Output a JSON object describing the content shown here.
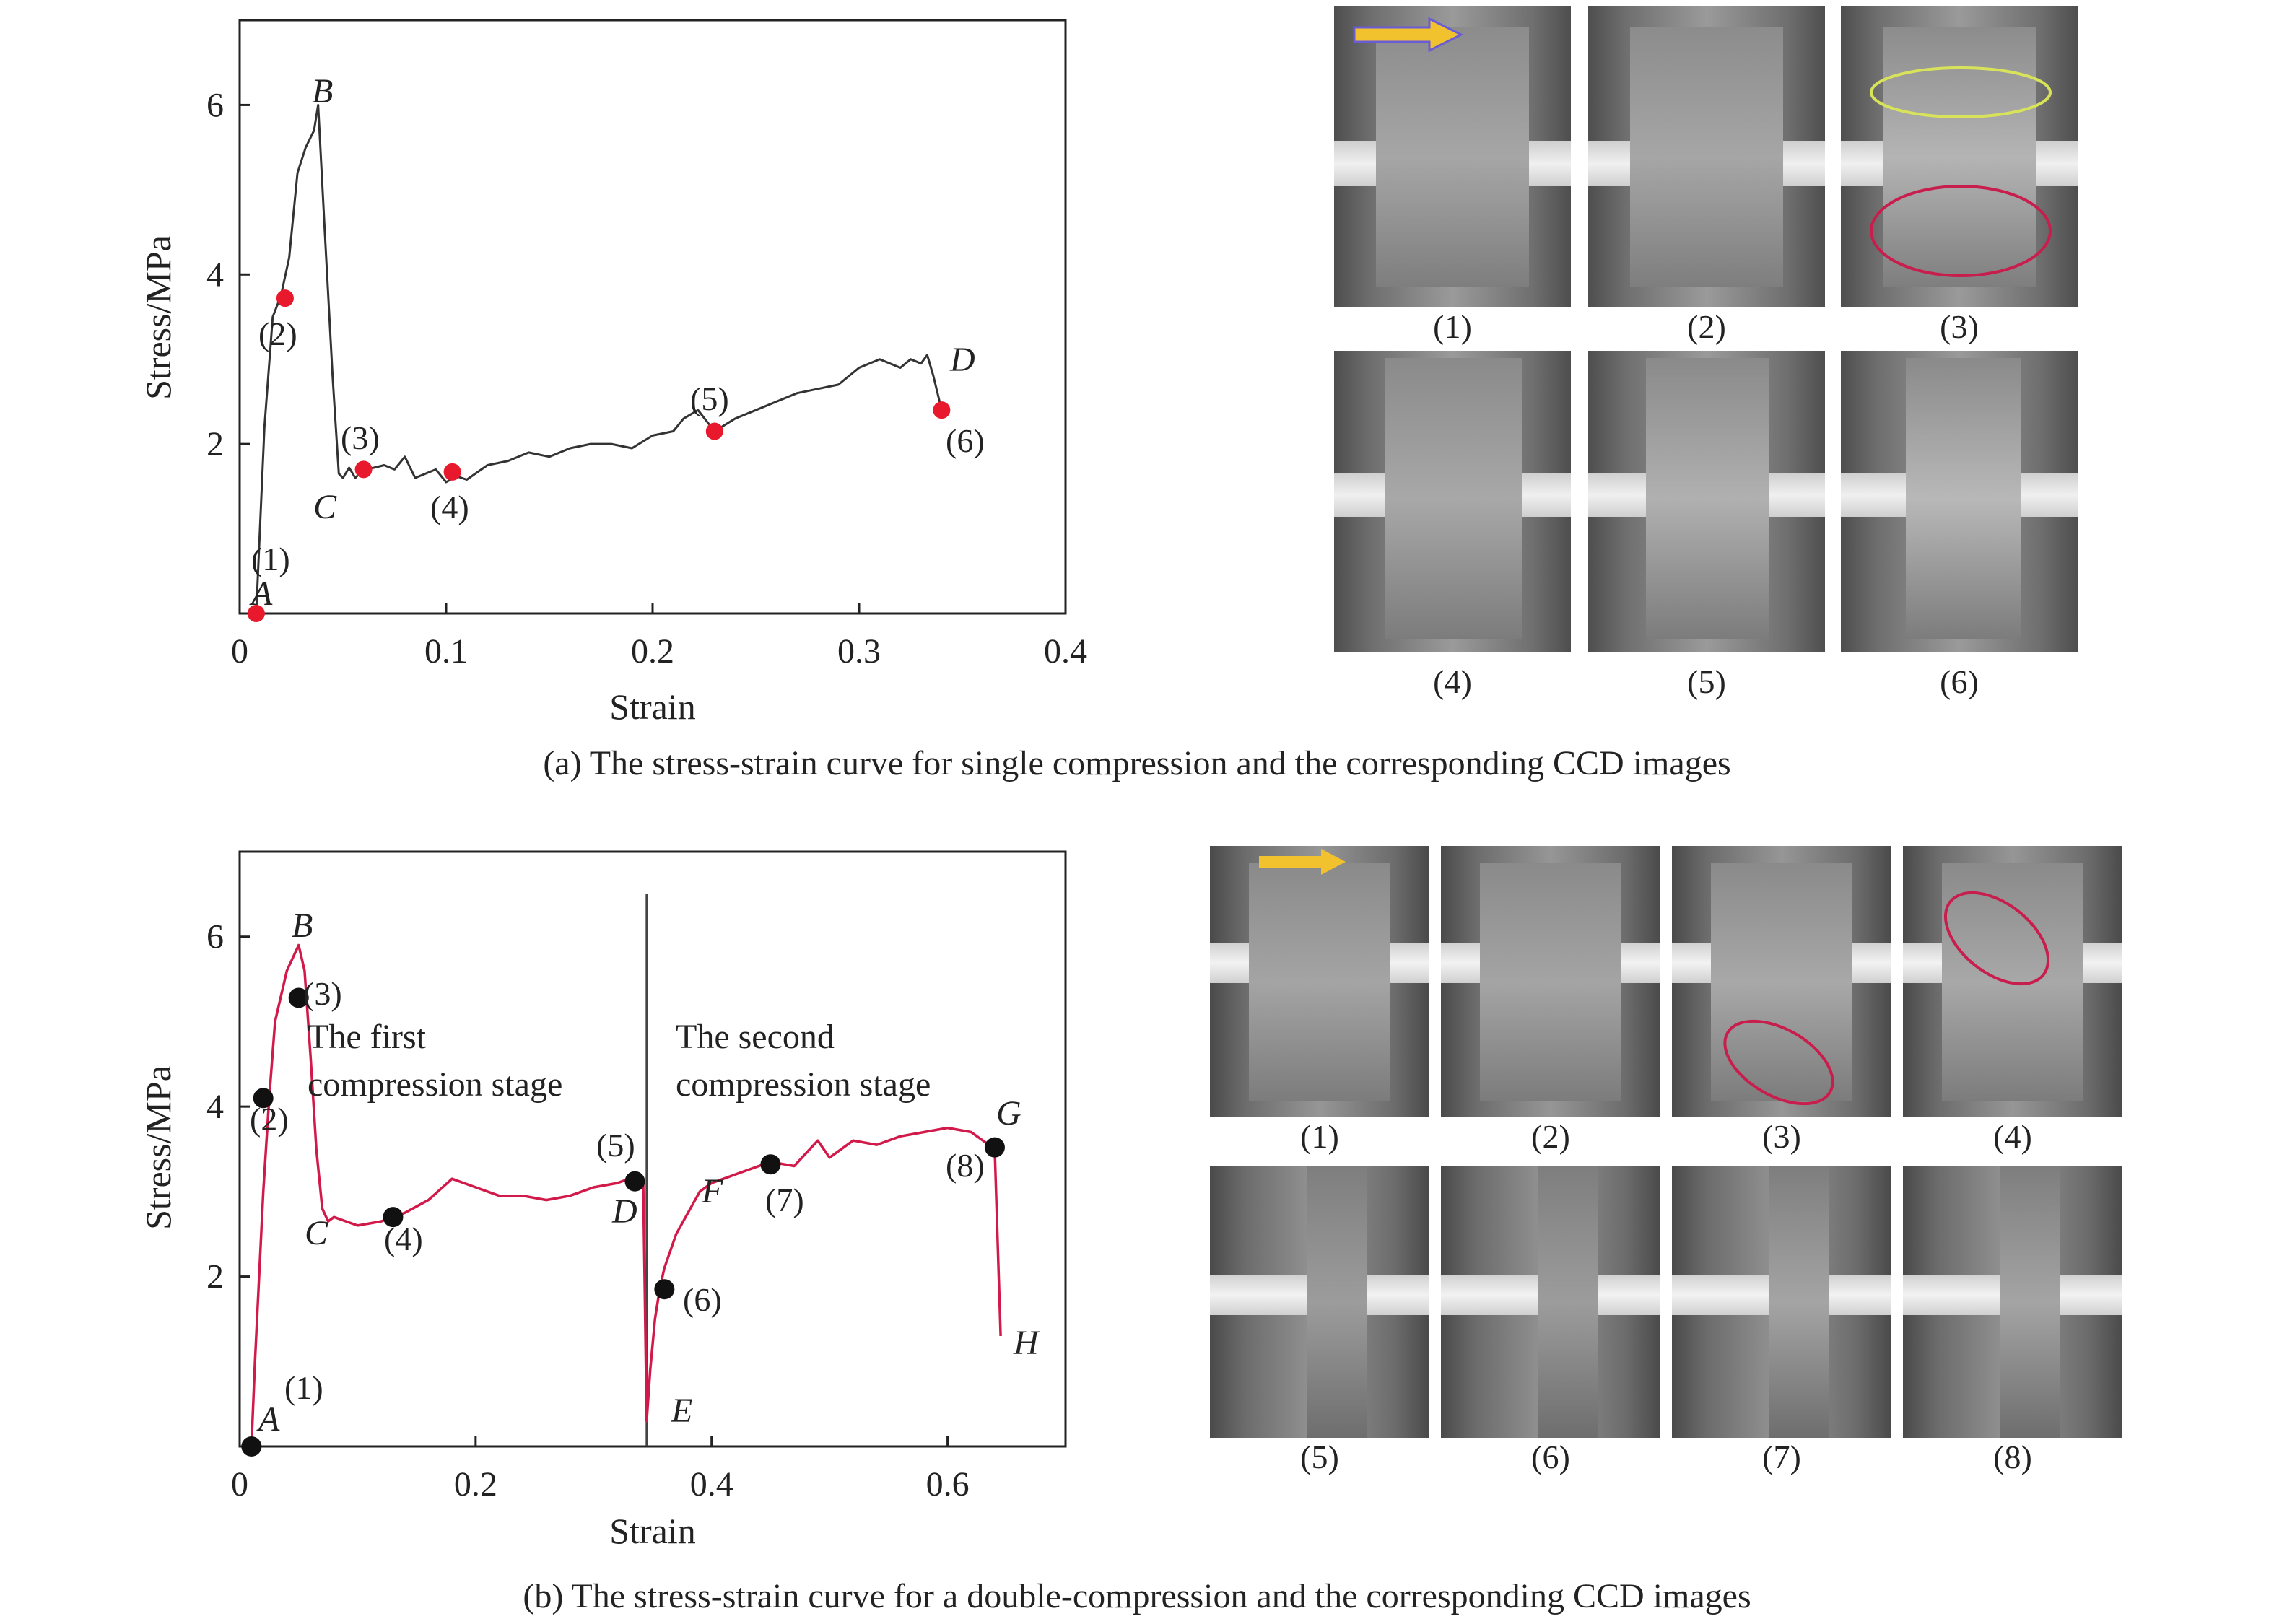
{
  "colors": {
    "axis": "#222222",
    "curve_a": "#333333",
    "curve_b": "#d11a4a",
    "marker_a": "#e8192c",
    "marker_b": "#111111",
    "arrow": "#f2c12e",
    "ellipse_yellow": "#d8e35a",
    "ellipse_red": "#c81e4e"
  },
  "panel_a": {
    "caption": "(a) The stress-strain curve for single compression and the corresponding CCD images",
    "image_labels": [
      "(1)",
      "(2)",
      "(3)",
      "(4)",
      "(5)",
      "(6)"
    ],
    "icons": [
      "arrow-icon",
      "ellipse-icon"
    ]
  },
  "panel_b": {
    "caption": "(b) The stress-strain curve for a double-compression and the corresponding CCD images",
    "image_labels": [
      "(1)",
      "(2)",
      "(3)",
      "(4)",
      "(5)",
      "(6)",
      "(7)",
      "(8)"
    ],
    "icons": [
      "arrow-icon",
      "ellipse-icon"
    ]
  },
  "chart_data": [
    {
      "type": "line",
      "xlabel": "Strain",
      "ylabel": "Stress/MPa",
      "xlim": [
        0,
        0.4
      ],
      "ylim": [
        0,
        7
      ],
      "x_ticks": [
        "0",
        "0.1",
        "0.2",
        "0.3",
        "0.4"
      ],
      "y_ticks": [
        "2",
        "4",
        "6"
      ],
      "grid": false,
      "series": [
        {
          "x": [
            0.008,
            0.012,
            0.016,
            0.02,
            0.024,
            0.028,
            0.032,
            0.036,
            0.038,
            0.041,
            0.045,
            0.048,
            0.05,
            0.053,
            0.056,
            0.06,
            0.065,
            0.07,
            0.075,
            0.08,
            0.085,
            0.09,
            0.095,
            0.1,
            0.105,
            0.11,
            0.12,
            0.13,
            0.14,
            0.15,
            0.16,
            0.17,
            0.18,
            0.19,
            0.2,
            0.21,
            0.215,
            0.222,
            0.23,
            0.24,
            0.25,
            0.26,
            0.27,
            0.28,
            0.29,
            0.3,
            0.31,
            0.32,
            0.325,
            0.33,
            0.333,
            0.336,
            0.34
          ],
          "y": [
            0.0,
            2.2,
            3.5,
            3.75,
            4.2,
            5.2,
            5.5,
            5.7,
            6.0,
            4.6,
            2.8,
            1.65,
            1.6,
            1.72,
            1.6,
            1.7,
            1.72,
            1.75,
            1.7,
            1.85,
            1.6,
            1.65,
            1.7,
            1.55,
            1.62,
            1.58,
            1.75,
            1.8,
            1.9,
            1.85,
            1.95,
            2.0,
            2.0,
            1.95,
            2.1,
            2.15,
            2.3,
            2.4,
            2.15,
            2.3,
            2.4,
            2.5,
            2.6,
            2.65,
            2.7,
            2.9,
            3.0,
            2.9,
            3.0,
            2.95,
            3.05,
            2.8,
            2.4
          ]
        }
      ],
      "markers": [
        {
          "label": "(1)",
          "x": 0.008,
          "y": 0.0
        },
        {
          "label": "(2)",
          "x": 0.022,
          "y": 3.72
        },
        {
          "label": "(3)",
          "x": 0.06,
          "y": 1.7
        },
        {
          "label": "(4)",
          "x": 0.103,
          "y": 1.67
        },
        {
          "label": "(5)",
          "x": 0.23,
          "y": 2.15
        },
        {
          "label": "(6)",
          "x": 0.34,
          "y": 2.4
        }
      ],
      "annotations": [
        "A",
        "B",
        "C",
        "D"
      ]
    },
    {
      "type": "line",
      "xlabel": "Strain",
      "ylabel": "Stress/MPa",
      "xlim": [
        0,
        0.7
      ],
      "ylim": [
        0,
        7
      ],
      "x_ticks": [
        "0",
        "0.2",
        "0.4",
        "0.6"
      ],
      "y_ticks": [
        "2",
        "4",
        "6"
      ],
      "grid": false,
      "series": [
        {
          "x": [
            0.01,
            0.013,
            0.02,
            0.025,
            0.03,
            0.04,
            0.05,
            0.055,
            0.06,
            0.065,
            0.07,
            0.075,
            0.08,
            0.09,
            0.1,
            0.12,
            0.13,
            0.14,
            0.16,
            0.18,
            0.2,
            0.22,
            0.24,
            0.26,
            0.28,
            0.3,
            0.32,
            0.33,
            0.335,
            0.342,
            0.345,
            0.348,
            0.352,
            0.356,
            0.36,
            0.37,
            0.38,
            0.39,
            0.4,
            0.41,
            0.43,
            0.45,
            0.47,
            0.49,
            0.5,
            0.52,
            0.54,
            0.56,
            0.58,
            0.6,
            0.62,
            0.64,
            0.645
          ],
          "y": [
            0.0,
            1.0,
            3.0,
            4.1,
            5.0,
            5.6,
            5.9,
            5.6,
            4.6,
            3.5,
            2.8,
            2.65,
            2.7,
            2.65,
            2.6,
            2.65,
            2.7,
            2.75,
            2.9,
            3.15,
            3.05,
            2.95,
            2.95,
            2.9,
            2.95,
            3.05,
            3.1,
            3.15,
            3.1,
            3.15,
            0.3,
            0.9,
            1.5,
            1.85,
            2.1,
            2.5,
            2.75,
            3.0,
            3.1,
            3.15,
            3.25,
            3.35,
            3.3,
            3.6,
            3.4,
            3.6,
            3.55,
            3.65,
            3.7,
            3.75,
            3.7,
            3.5,
            1.3
          ]
        }
      ],
      "markers": [
        {
          "label": "(1)",
          "x": 0.01,
          "y": 0.0
        },
        {
          "label": "(2)",
          "x": 0.02,
          "y": 4.1
        },
        {
          "label": "(3)",
          "x": 0.05,
          "y": 5.28
        },
        {
          "label": "(4)",
          "x": 0.13,
          "y": 2.7
        },
        {
          "label": "(5)",
          "x": 0.335,
          "y": 3.12
        },
        {
          "label": "(6)",
          "x": 0.36,
          "y": 1.85
        },
        {
          "label": "(7)",
          "x": 0.45,
          "y": 3.32
        },
        {
          "label": "(8)",
          "x": 0.64,
          "y": 3.52
        }
      ],
      "annotations": [
        "A",
        "B",
        "C",
        "D",
        "E",
        "F",
        "G",
        "H"
      ],
      "stage_labels": [
        [
          "The first",
          "compression stage"
        ],
        [
          "The second",
          "compression stage"
        ]
      ],
      "stage_boundary_x": 0.345
    }
  ]
}
